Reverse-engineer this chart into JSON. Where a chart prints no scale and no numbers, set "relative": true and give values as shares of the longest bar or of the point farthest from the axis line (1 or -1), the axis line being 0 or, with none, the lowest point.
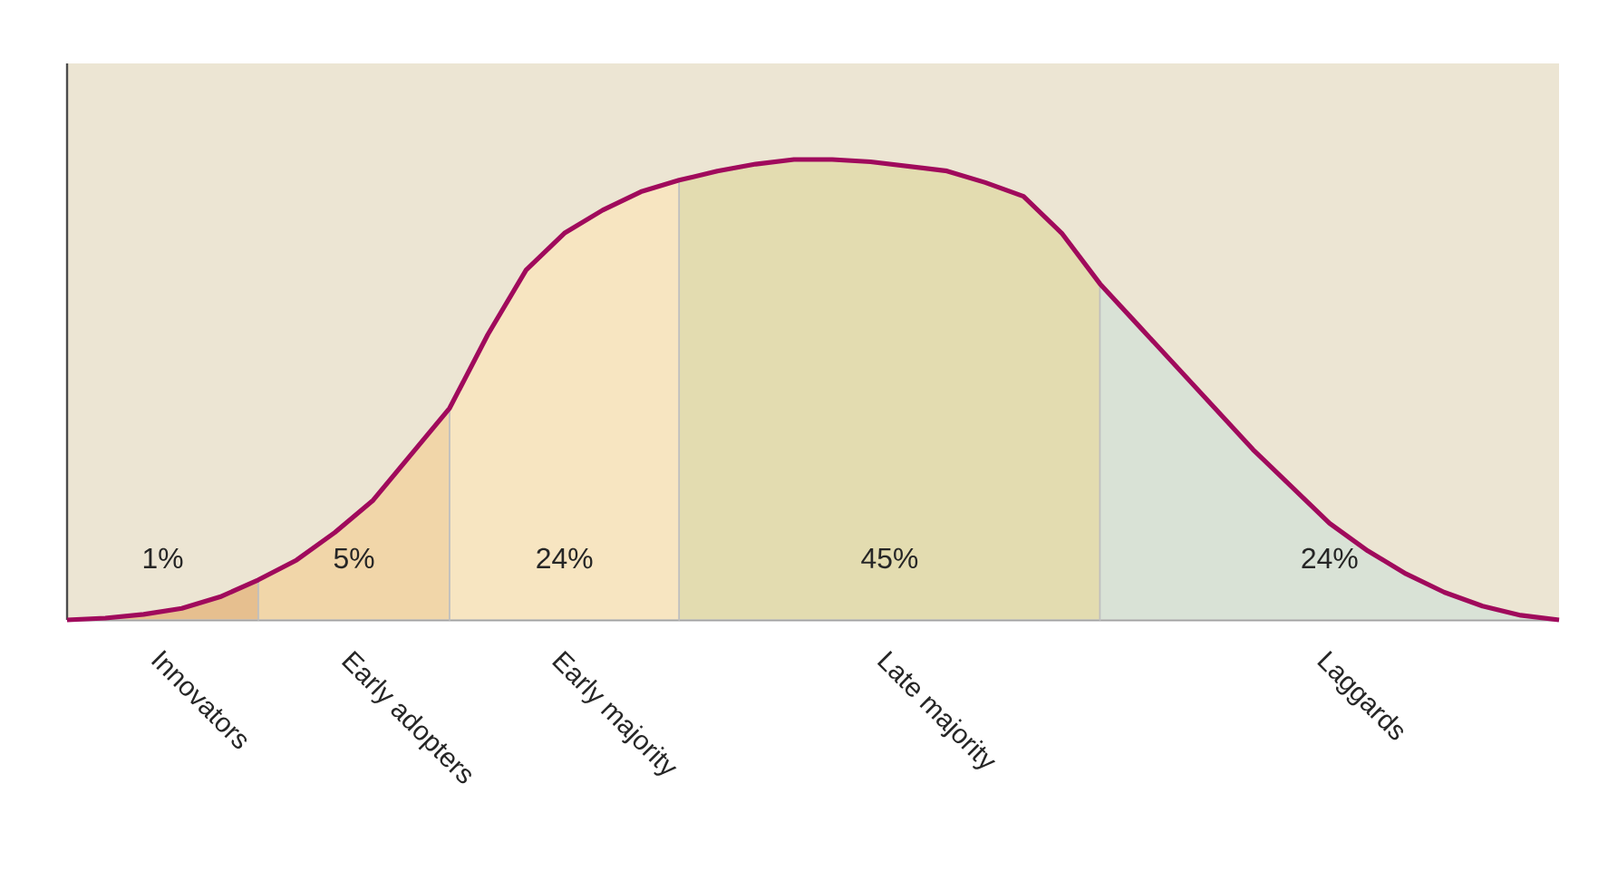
{
  "chart_data": {
    "type": "area",
    "relative": true,
    "categories": [
      null,
      null,
      null,
      null,
      null,
      null,
      null,
      null,
      null,
      null,
      null,
      null,
      null,
      null,
      null,
      null,
      null,
      null,
      null,
      null,
      null,
      null,
      null,
      null,
      null,
      null,
      null,
      null,
      null,
      null,
      null,
      null,
      null,
      null,
      null,
      null,
      null,
      null,
      null,
      null
    ],
    "series": [
      {
        "name": "Innovators",
        "color": "#e6bf8f",
        "values": [
          0,
          0.004,
          0.012,
          0.025,
          0.05,
          0.087,
          null,
          null,
          null,
          null,
          null,
          null,
          null,
          null,
          null,
          null,
          null,
          null,
          null,
          null,
          null,
          null,
          null,
          null,
          null,
          null,
          null,
          null,
          null,
          null,
          null,
          null,
          null,
          null,
          null,
          null,
          null,
          null,
          null,
          null
        ]
      },
      {
        "name": "Early adopters",
        "color": "#f1d6a9",
        "values": [
          null,
          null,
          null,
          null,
          null,
          0.087,
          0.13,
          0.19,
          0.26,
          0.36,
          0.46,
          null,
          null,
          null,
          null,
          null,
          null,
          null,
          null,
          null,
          null,
          null,
          null,
          null,
          null,
          null,
          null,
          null,
          null,
          null,
          null,
          null,
          null,
          null,
          null,
          null,
          null,
          null,
          null,
          null
        ]
      },
      {
        "name": "Early majority",
        "color": "#f7e5c1",
        "values": [
          null,
          null,
          null,
          null,
          null,
          null,
          null,
          null,
          null,
          null,
          0.46,
          0.62,
          0.76,
          0.84,
          0.89,
          0.93,
          0.955,
          null,
          null,
          null,
          null,
          null,
          null,
          null,
          null,
          null,
          null,
          null,
          null,
          null,
          null,
          null,
          null,
          null,
          null,
          null,
          null,
          null,
          null,
          null
        ]
      },
      {
        "name": "Late majority",
        "color": "#e3dcb0",
        "values": [
          null,
          null,
          null,
          null,
          null,
          null,
          null,
          null,
          null,
          null,
          null,
          null,
          null,
          null,
          null,
          null,
          0.955,
          0.975,
          0.99,
          1,
          1,
          0.995,
          0.985,
          0.975,
          0.95,
          0.92,
          0.84,
          0.73,
          null,
          null,
          null,
          null,
          null,
          null,
          null,
          null,
          null,
          null,
          null,
          null
        ]
      },
      {
        "name": "Laggards",
        "color": "#d9e2d6",
        "values": [
          null,
          null,
          null,
          null,
          null,
          null,
          null,
          null,
          null,
          null,
          null,
          null,
          null,
          null,
          null,
          null,
          null,
          null,
          null,
          null,
          null,
          null,
          null,
          null,
          null,
          null,
          null,
          0.73,
          0.64,
          0.55,
          0.46,
          0.37,
          0.29,
          0.21,
          0.15,
          0.1,
          0.06,
          0.03,
          0.01,
          0
        ]
      },
      {
        "type": "line",
        "color": "#a00a5c",
        "values": [
          0,
          0.004,
          0.012,
          0.025,
          0.05,
          0.087,
          0.13,
          0.19,
          0.26,
          0.36,
          0.46,
          0.62,
          0.76,
          0.84,
          0.89,
          0.93,
          0.955,
          0.975,
          0.99,
          1,
          1,
          0.995,
          0.985,
          0.975,
          0.95,
          0.92,
          0.84,
          0.73,
          0.64,
          0.55,
          0.46,
          0.37,
          0.29,
          0.21,
          0.15,
          0.1,
          0.06,
          0.03,
          0.01,
          0
        ]
      }
    ],
    "annotations": [
      "1%",
      "5%",
      "24%",
      "45%",
      "24%"
    ]
  }
}
